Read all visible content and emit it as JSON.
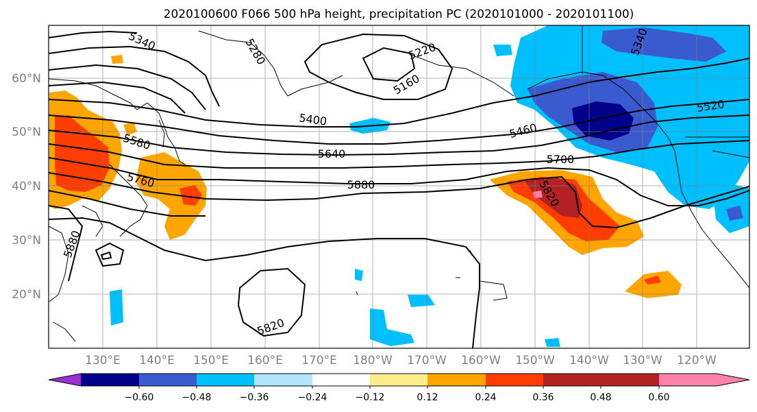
{
  "title": "2020100600 F066 500 hPa height, precipitation PC (2020101000 - 2020101100)",
  "map": {
    "lon_labels": [
      "130°E",
      "140°E",
      "150°E",
      "160°E",
      "170°E",
      "180°W",
      "170°W",
      "160°W",
      "150°W",
      "140°W",
      "130°W",
      "120°W"
    ],
    "lat_labels": [
      "20°N",
      "30°N",
      "40°N",
      "50°N",
      "60°N"
    ],
    "contour_labels": [
      "5340",
      "5280",
      "5220",
      "5160",
      "5400",
      "5580",
      "5640",
      "5760",
      "5880",
      "5700",
      "5460",
      "5520",
      "5820",
      "5880",
      "5820",
      "5340"
    ]
  },
  "colorbar": {
    "tick_labels": [
      "−0.60",
      "−0.48",
      "−0.36",
      "−0.24",
      "−0.12",
      "0.12",
      "0.24",
      "0.36",
      "0.48",
      "0.60"
    ],
    "colors": [
      "#9b30d0",
      "#00008b",
      "#3a5bd0",
      "#00bfff",
      "#b3e5ff",
      "#ffffff",
      "#ffec8b",
      "#ffa500",
      "#ff3d00",
      "#b22222",
      "#ff82ab"
    ]
  }
}
